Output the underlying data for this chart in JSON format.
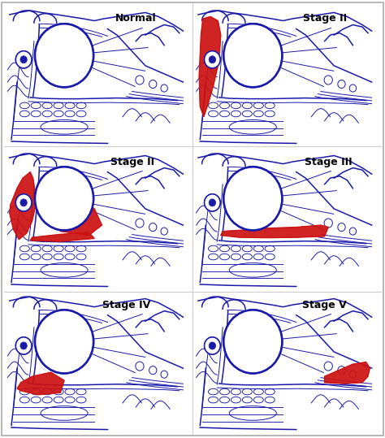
{
  "background_color": "#ffffff",
  "blue": "#1a1aaa",
  "red": "#cc1111",
  "white": "#ffffff",
  "figsize": [
    4.74,
    5.39
  ],
  "dpi": 100,
  "labels": [
    "Normal",
    "Stage II",
    "Stage II",
    "Stage III",
    "Stage IV",
    "Stage V"
  ],
  "label_fontsize": 9,
  "divider_color": "#cccccc"
}
